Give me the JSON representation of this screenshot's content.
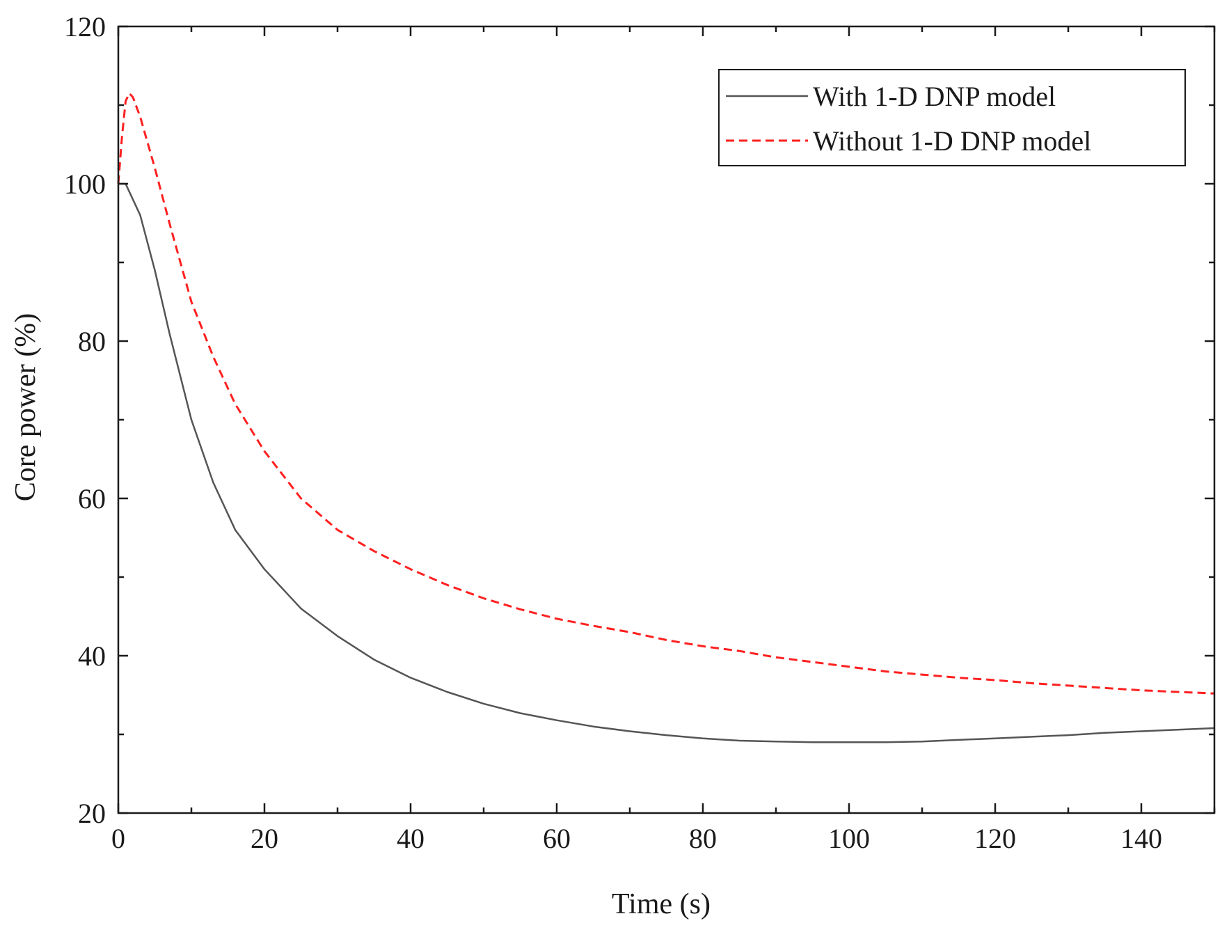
{
  "chart_data": {
    "type": "line",
    "xlabel": "Time (s)",
    "ylabel": "Core power (%)",
    "xlim": [
      0,
      150
    ],
    "ylim": [
      20,
      120
    ],
    "xticks": [
      0,
      20,
      40,
      60,
      80,
      100,
      120,
      140
    ],
    "yticks": [
      20,
      40,
      60,
      80,
      100,
      120
    ],
    "grid": false,
    "legend_position": "top-right",
    "series": [
      {
        "name": "With 1-D DNP model",
        "color": "#555555",
        "dash": "solid",
        "x": [
          0,
          1,
          3,
          5,
          7,
          10,
          13,
          16,
          20,
          25,
          30,
          35,
          40,
          45,
          50,
          55,
          60,
          65,
          70,
          75,
          80,
          85,
          90,
          95,
          100,
          105,
          110,
          115,
          120,
          125,
          130,
          135,
          140,
          145,
          150
        ],
        "y": [
          100,
          100,
          96,
          89,
          81,
          70,
          62,
          56,
          51,
          46,
          42.5,
          39.5,
          37.2,
          35.4,
          33.9,
          32.7,
          31.8,
          31.0,
          30.4,
          29.9,
          29.5,
          29.2,
          29.1,
          29.0,
          29.0,
          29.0,
          29.1,
          29.3,
          29.5,
          29.7,
          29.9,
          30.2,
          30.4,
          30.6,
          30.8
        ]
      },
      {
        "name": "Without 1-D DNP model",
        "color": "#ff2020",
        "dash": "dashed",
        "x": [
          0,
          0.5,
          1,
          1.5,
          2,
          3,
          5,
          7,
          10,
          13,
          16,
          20,
          25,
          30,
          35,
          40,
          45,
          50,
          55,
          60,
          65,
          70,
          75,
          80,
          85,
          90,
          95,
          100,
          105,
          110,
          115,
          120,
          125,
          130,
          135,
          140,
          145,
          150
        ],
        "y": [
          100,
          106,
          110.5,
          111.5,
          111,
          108.5,
          102,
          95,
          85,
          78,
          72,
          66,
          60,
          56,
          53.3,
          51,
          49,
          47.3,
          45.9,
          44.7,
          43.8,
          43.0,
          42.0,
          41.2,
          40.6,
          39.8,
          39.2,
          38.6,
          38.0,
          37.6,
          37.2,
          36.9,
          36.5,
          36.2,
          35.9,
          35.6,
          35.4,
          35.2
        ]
      }
    ]
  }
}
